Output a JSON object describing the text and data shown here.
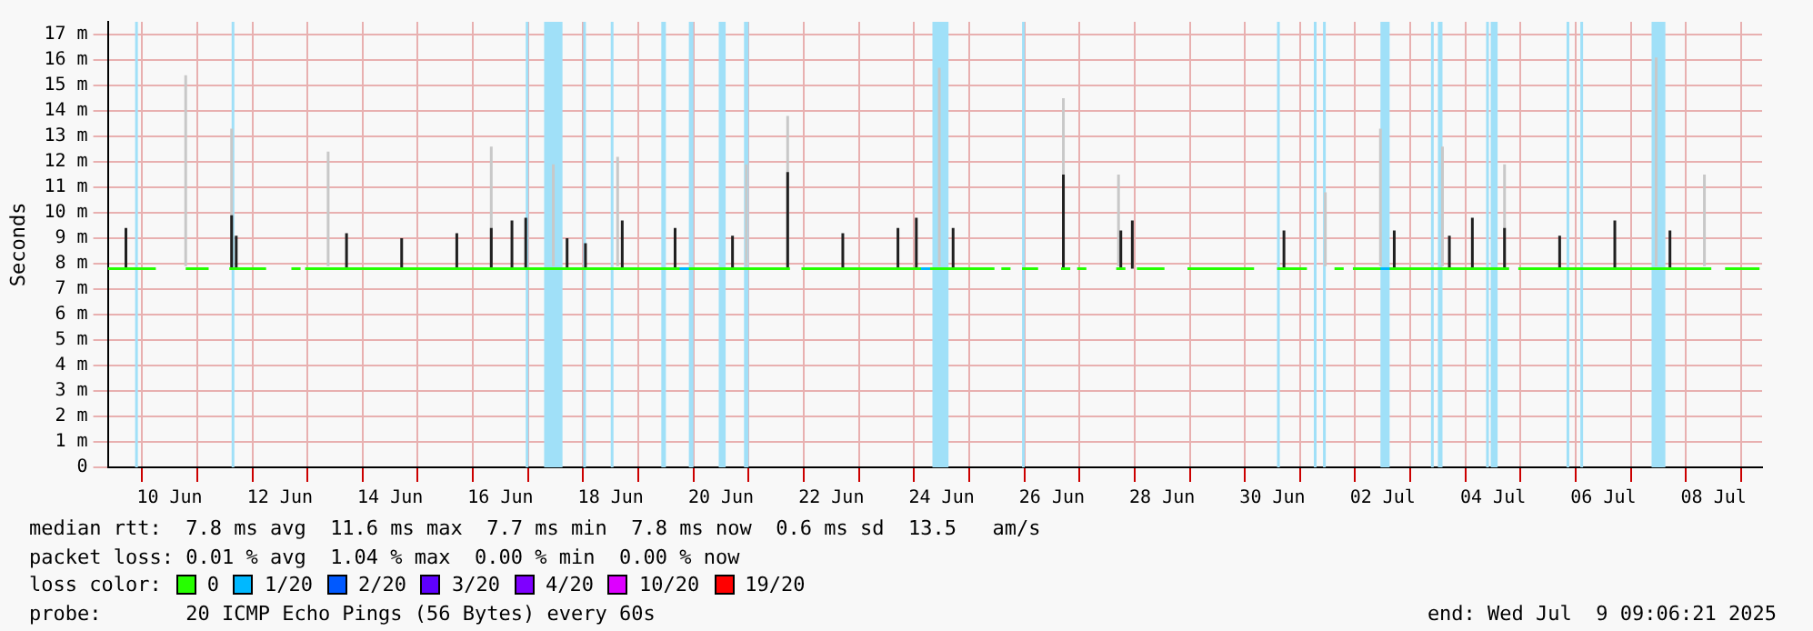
{
  "chart_data": {
    "type": "line",
    "ylabel": "Seconds",
    "legend_title": "loss color:",
    "legend": "bottom",
    "grid": true,
    "marker": "none",
    "line_style": "solid",
    "xlim": [
      "2025-06-09T09:06",
      "2025-07-09T09:06"
    ],
    "xticks": [
      {
        "value": "2025-06-10T12:00",
        "label": "10 Jun"
      },
      {
        "value": "2025-06-12T12:00",
        "label": "12 Jun"
      },
      {
        "value": "2025-06-14T12:00",
        "label": "14 Jun"
      },
      {
        "value": "2025-06-16T12:00",
        "label": "16 Jun"
      },
      {
        "value": "2025-06-18T12:00",
        "label": "18 Jun"
      },
      {
        "value": "2025-06-20T12:00",
        "label": "20 Jun"
      },
      {
        "value": "2025-06-22T12:00",
        "label": "22 Jun"
      },
      {
        "value": "2025-06-24T12:00",
        "label": "24 Jun"
      },
      {
        "value": "2025-06-26T12:00",
        "label": "26 Jun"
      },
      {
        "value": "2025-06-28T12:00",
        "label": "28 Jun"
      },
      {
        "value": "2025-06-30T12:00",
        "label": "30 Jun"
      },
      {
        "value": "2025-07-02T12:00",
        "label": "02 Jul"
      },
      {
        "value": "2025-07-04T12:00",
        "label": "04 Jul"
      },
      {
        "value": "2025-07-06T12:00",
        "label": "06 Jul"
      },
      {
        "value": "2025-07-08T12:00",
        "label": "08 Jul"
      },
      {
        "value": "2025-06-10",
        "label": null
      },
      {
        "value": "2025-06-11",
        "label": null
      },
      {
        "value": "2025-06-12",
        "label": null
      },
      {
        "value": "2025-06-13",
        "label": null
      },
      {
        "value": "2025-06-14",
        "label": null
      },
      {
        "value": "2025-06-15",
        "label": null
      },
      {
        "value": "2025-06-16",
        "label": null
      },
      {
        "value": "2025-06-17",
        "label": null
      },
      {
        "value": "2025-06-18",
        "label": null
      },
      {
        "value": "2025-06-19",
        "label": null
      },
      {
        "value": "2025-06-20",
        "label": null
      },
      {
        "value": "2025-06-21",
        "label": null
      },
      {
        "value": "2025-06-22",
        "label": null
      },
      {
        "value": "2025-06-23",
        "label": null
      },
      {
        "value": "2025-06-24",
        "label": null
      },
      {
        "value": "2025-06-25",
        "label": null
      },
      {
        "value": "2025-06-26",
        "label": null
      },
      {
        "value": "2025-06-27",
        "label": null
      },
      {
        "value": "2025-06-28",
        "label": null
      },
      {
        "value": "2025-06-29",
        "label": null
      },
      {
        "value": "2025-06-30",
        "label": null
      },
      {
        "value": "2025-07-01",
        "label": null
      },
      {
        "value": "2025-07-02",
        "label": null
      },
      {
        "value": "2025-07-03",
        "label": null
      },
      {
        "value": "2025-07-04",
        "label": null
      },
      {
        "value": "2025-07-05",
        "label": null
      },
      {
        "value": "2025-07-06",
        "label": null
      },
      {
        "value": "2025-07-07",
        "label": null
      },
      {
        "value": "2025-07-08",
        "label": null
      },
      {
        "value": "2025-07-09",
        "label": null
      }
    ],
    "ylim": [
      0,
      17.5
    ],
    "yticks": [
      0,
      {
        "value": 1,
        "label": "1 m"
      },
      {
        "value": 2,
        "label": "2 m"
      },
      {
        "value": 3,
        "label": "3 m"
      },
      {
        "value": 4,
        "label": "4 m"
      },
      {
        "value": 5,
        "label": "5 m"
      },
      {
        "value": 6,
        "label": "6 m"
      },
      {
        "value": 7,
        "label": "7 m"
      },
      {
        "value": 8,
        "label": "8 m"
      },
      {
        "value": 9,
        "label": "9 m"
      },
      {
        "value": 10,
        "label": "10 m"
      },
      {
        "value": 11,
        "label": "11 m"
      },
      {
        "value": 12,
        "label": "12 m"
      },
      {
        "value": 13,
        "label": "13 m"
      },
      {
        "value": 14,
        "label": "14 m"
      },
      {
        "value": 15,
        "label": "15 m"
      },
      {
        "value": 16,
        "label": "16 m"
      },
      {
        "value": 17,
        "label": "17 m"
      }
    ],
    "bands": [
      {
        "axis": "x",
        "from": "2025-06-09T21:00",
        "to": "2025-06-09T22:00",
        "color": "#a0e0f8"
      },
      {
        "axis": "x",
        "from": "2025-06-11T15:00",
        "to": "2025-06-11T16:00",
        "color": "#a0e0f8"
      },
      {
        "axis": "x",
        "from": "2025-06-16T23:00",
        "to": "2025-06-17T00:00",
        "color": "#a0e0f8"
      },
      {
        "axis": "x",
        "from": "2025-06-17T07:00",
        "to": "2025-06-17T15:00",
        "color": "#a0e0f8"
      },
      {
        "axis": "x",
        "from": "2025-06-18T00:00",
        "to": "2025-06-18T01:00",
        "color": "#a0e0f8"
      },
      {
        "axis": "x",
        "from": "2025-06-18T12:00",
        "to": "2025-06-18T13:00",
        "color": "#a0e0f8"
      },
      {
        "axis": "x",
        "from": "2025-06-19T10:00",
        "to": "2025-06-19T12:00",
        "color": "#a0e0f8"
      },
      {
        "axis": "x",
        "from": "2025-06-19T22:00",
        "to": "2025-06-20T00:00",
        "color": "#a0e0f8"
      },
      {
        "axis": "x",
        "from": "2025-06-20T11:00",
        "to": "2025-06-20T14:00",
        "color": "#a0e0f8"
      },
      {
        "axis": "x",
        "from": "2025-06-20T22:00",
        "to": "2025-06-21T00:00",
        "color": "#a0e0f8"
      },
      {
        "axis": "x",
        "from": "2025-06-24T08:00",
        "to": "2025-06-24T15:00",
        "color": "#a0e0f8"
      },
      {
        "axis": "x",
        "from": "2025-06-25T23:00",
        "to": "2025-06-26T00:00",
        "color": "#a0e0f8"
      },
      {
        "axis": "x",
        "from": "2025-06-30T14:00",
        "to": "2025-06-30T15:00",
        "color": "#a0e0f8"
      },
      {
        "axis": "x",
        "from": "2025-07-01T06:00",
        "to": "2025-07-01T07:00",
        "color": "#a0e0f8"
      },
      {
        "axis": "x",
        "from": "2025-07-01T10:00",
        "to": "2025-07-01T11:00",
        "color": "#a0e0f8"
      },
      {
        "axis": "x",
        "from": "2025-07-02T11:00",
        "to": "2025-07-02T15:00",
        "color": "#a0e0f8"
      },
      {
        "axis": "x",
        "from": "2025-07-03T09:00",
        "to": "2025-07-03T10:00",
        "color": "#a0e0f8"
      },
      {
        "axis": "x",
        "from": "2025-07-03T12:00",
        "to": "2025-07-03T14:00",
        "color": "#a0e0f8"
      },
      {
        "axis": "x",
        "from": "2025-07-04T09:00",
        "to": "2025-07-04T10:00",
        "color": "#a0e0f8"
      },
      {
        "axis": "x",
        "from": "2025-07-04T11:00",
        "to": "2025-07-04T14:00",
        "color": "#a0e0f8"
      },
      {
        "axis": "x",
        "from": "2025-07-05T20:00",
        "to": "2025-07-05T21:00",
        "color": "#a0e0f8"
      },
      {
        "axis": "x",
        "from": "2025-07-06T02:00",
        "to": "2025-07-06T03:00",
        "color": "#a0e0f8"
      },
      {
        "axis": "x",
        "from": "2025-07-07T09:00",
        "to": "2025-07-07T15:00",
        "color": "#a0e0f8"
      }
    ],
    "series": [
      {
        "color": "#c8c8c8",
        "x": [
          "2025-06-10T19:00",
          "2025-06-10T19:00",
          null,
          "2025-06-11T15:00",
          "2025-06-11T15:00",
          null,
          "2025-06-13T09:00",
          "2025-06-13T09:00",
          null,
          "2025-06-16T08:00",
          "2025-06-16T08:00",
          null,
          "2025-06-17T11:00",
          "2025-06-17T11:00",
          null,
          "2025-06-18T15:00",
          "2025-06-18T15:00",
          null,
          "2025-06-20T23:00",
          "2025-06-20T23:00",
          null,
          "2025-06-21T17:00",
          "2025-06-21T17:00",
          null,
          "2025-06-24T11:00",
          "2025-06-24T11:00",
          null,
          "2025-06-26T17:00",
          "2025-06-26T17:00",
          null,
          "2025-06-27T17:00",
          "2025-06-27T17:00",
          null,
          "2025-07-01T11:00",
          "2025-07-01T11:00",
          null,
          "2025-07-02T11:00",
          "2025-07-02T11:00",
          null,
          "2025-07-03T14:00",
          "2025-07-03T14:00",
          null,
          "2025-07-04T17:00",
          "2025-07-04T17:00",
          null,
          "2025-07-07T11:00",
          "2025-07-07T11:00",
          null,
          "2025-07-08T08:00",
          "2025-07-08T08:00"
        ],
        "values": [
          7.9,
          15.4,
          null,
          7.9,
          13.3,
          null,
          7.9,
          12.4,
          null,
          7.9,
          12.6,
          null,
          7.9,
          11.9,
          null,
          7.9,
          12.2,
          null,
          7.9,
          11.9,
          null,
          7.9,
          13.8,
          null,
          7.9,
          15.7,
          null,
          7.9,
          14.5,
          null,
          7.9,
          11.5,
          null,
          7.9,
          10.8,
          null,
          7.9,
          13.3,
          null,
          7.9,
          12.6,
          null,
          7.9,
          11.9,
          null,
          7.9,
          16.1,
          null,
          7.9,
          11.5
        ]
      },
      {
        "color": "#202020",
        "x": [
          "2025-06-09T17:00",
          "2025-06-09T17:00",
          null,
          "2025-06-11T15:00",
          "2025-06-11T15:00",
          null,
          "2025-06-11T17:00",
          "2025-06-11T17:00",
          null,
          "2025-06-13T17:00",
          "2025-06-13T17:00",
          null,
          "2025-06-14T17:00",
          "2025-06-14T17:00",
          null,
          "2025-06-15T17:00",
          "2025-06-15T17:00",
          null,
          "2025-06-16T08:00",
          "2025-06-16T08:00",
          null,
          "2025-06-16T17:00",
          "2025-06-16T17:00",
          null,
          "2025-06-16T23:00",
          "2025-06-16T23:00",
          null,
          "2025-06-17T17:00",
          "2025-06-17T17:00",
          null,
          "2025-06-18T01:00",
          "2025-06-18T01:00",
          null,
          "2025-06-18T17:00",
          "2025-06-18T17:00",
          null,
          "2025-06-19T16:00",
          "2025-06-19T16:00",
          null,
          "2025-06-20T17:00",
          "2025-06-20T17:00",
          null,
          "2025-06-21T17:00",
          "2025-06-21T17:00",
          null,
          "2025-06-22T17:00",
          "2025-06-22T17:00",
          null,
          "2025-06-23T17:00",
          "2025-06-23T17:00",
          null,
          "2025-06-24T01:00",
          "2025-06-24T01:00",
          null,
          "2025-06-24T17:00",
          "2025-06-24T17:00",
          null,
          "2025-06-26T17:00",
          "2025-06-26T17:00",
          null,
          "2025-06-27T18:00",
          "2025-06-27T18:00",
          null,
          "2025-06-27T23:00",
          "2025-06-27T23:00",
          null,
          "2025-06-30T17:00",
          "2025-06-30T17:00",
          null,
          "2025-07-02T17:00",
          "2025-07-02T17:00",
          null,
          "2025-07-03T17:00",
          "2025-07-03T17:00",
          null,
          "2025-07-04T03:00",
          "2025-07-04T03:00",
          null,
          "2025-07-04T17:00",
          "2025-07-04T17:00",
          null,
          "2025-07-05T17:00",
          "2025-07-05T17:00",
          null,
          "2025-07-06T17:00",
          "2025-07-06T17:00",
          null,
          "2025-07-07T17:00",
          "2025-07-07T17:00"
        ],
        "values": [
          7.8,
          9.4,
          null,
          7.8,
          9.9,
          null,
          7.8,
          9.1,
          null,
          7.8,
          9.2,
          null,
          7.8,
          9.0,
          null,
          7.8,
          9.2,
          null,
          7.8,
          9.4,
          null,
          7.8,
          9.7,
          null,
          7.8,
          9.8,
          null,
          7.8,
          9.0,
          null,
          7.8,
          8.8,
          null,
          7.8,
          9.7,
          null,
          7.8,
          9.4,
          null,
          7.8,
          9.1,
          null,
          7.8,
          11.6,
          null,
          7.8,
          9.2,
          null,
          7.8,
          9.4,
          null,
          7.8,
          9.8,
          null,
          7.8,
          9.4,
          null,
          7.8,
          11.5,
          null,
          7.8,
          9.3,
          null,
          7.8,
          9.7,
          null,
          7.8,
          9.3,
          null,
          7.8,
          9.3,
          null,
          7.8,
          9.1,
          null,
          7.8,
          9.8,
          null,
          7.8,
          9.4,
          null,
          7.8,
          9.1,
          null,
          7.8,
          9.7,
          null,
          7.8,
          9.3
        ]
      },
      {
        "name": "0",
        "color": "#26ff00",
        "x": [
          "2025-06-09T09:06",
          "2025-06-10T06:00",
          null,
          "2025-06-10T19:00",
          "2025-06-11T05:00",
          null,
          "2025-06-11T14:00",
          "2025-06-12T06:00",
          null,
          "2025-06-12T17:00",
          "2025-06-12T21:00",
          null,
          "2025-06-12T23:00",
          "2025-06-21T18:00",
          null,
          "2025-06-21T23:00",
          "2025-06-25T11:00",
          null,
          "2025-06-25T14:00",
          "2025-06-25T18:00",
          null,
          "2025-06-25T23:00",
          "2025-06-26T06:00",
          null,
          "2025-06-26T16:00",
          "2025-06-26T20:00",
          null,
          "2025-06-26T23:00",
          "2025-06-27T03:00",
          null,
          "2025-06-27T16:00",
          "2025-06-27T20:00",
          null,
          "2025-06-28T01:00",
          "2025-06-28T13:00",
          null,
          "2025-06-28T23:00",
          "2025-06-30T04:00",
          null,
          "2025-06-30T14:00",
          "2025-07-01T03:00",
          null,
          "2025-07-01T15:00",
          "2025-07-01T19:00",
          null,
          "2025-07-01T23:00",
          "2025-07-04T19:00",
          null,
          "2025-07-04T23:00",
          "2025-07-08T11:00",
          null,
          "2025-07-08T17:00",
          "2025-07-09T08:00"
        ],
        "values": [
          7.8,
          7.8,
          null,
          7.8,
          7.8,
          null,
          7.8,
          7.8,
          null,
          7.8,
          7.8,
          null,
          7.8,
          7.8,
          null,
          7.8,
          7.8,
          null,
          7.8,
          7.8,
          null,
          7.8,
          7.8,
          null,
          7.8,
          7.8,
          null,
          7.8,
          7.8,
          null,
          7.8,
          7.8,
          null,
          7.8,
          7.8,
          null,
          7.8,
          7.8,
          null,
          7.8,
          7.8,
          null,
          7.8,
          7.8,
          null,
          7.8,
          7.8,
          null,
          7.8,
          7.8,
          null,
          7.8,
          7.8
        ]
      },
      {
        "name": "1/20",
        "color": "#00b8ff",
        "x": [
          "2025-06-19T18:00",
          "2025-06-19T22:00",
          null,
          "2025-06-24T03:00",
          "2025-06-24T07:00",
          null,
          "2025-07-02T11:00",
          "2025-07-02T15:00"
        ],
        "values": [
          7.8,
          7.8,
          null,
          7.8,
          7.8,
          null,
          7.8,
          7.8
        ]
      },
      {
        "name": "2/20",
        "color": "#0059ff"
      },
      {
        "name": "3/20",
        "color": "#5e00ff"
      },
      {
        "name": "4/20",
        "color": "#7e00ff"
      },
      {
        "name": "10/20",
        "color": "#dd00ff"
      },
      {
        "name": "19/20",
        "color": "#ff0000"
      }
    ],
    "annotations": [
      "median rtt:  7.8 ms avg  11.6 ms max  7.7 ms min  7.8 ms now  0.6 ms sd  13.5   am/s",
      "packet loss: 0.01 % avg  1.04 % max  0.00 % min  0.00 % now",
      "probe:       20 ICMP Echo Pings (56 Bytes) every 60s",
      "end: Wed Jul  9 09:06:21 2025"
    ]
  }
}
